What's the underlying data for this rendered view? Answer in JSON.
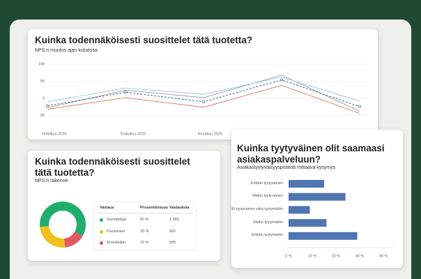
{
  "chart_data": [
    {
      "type": "line",
      "title": "Kuinka todennäköisesti suosittelet tätä tuotetta?",
      "subtitle": "NPS:n muutos ajan kuluessa",
      "categories": [
        "Huhtikuu 2025",
        "Toukokuu 2025",
        "Kesäkuu 2025",
        null,
        null
      ],
      "ylim": [
        -100,
        100
      ],
      "yticks": [
        100,
        50,
        0,
        -50
      ],
      "grid": true,
      "series": [
        {
          "color": "#9a9a9a",
          "values": [
            -28,
            24,
            2,
            68,
            -38
          ]
        },
        {
          "color": "#9cc3dd",
          "values": [
            -10,
            30,
            12,
            62,
            -8
          ]
        },
        {
          "color": "#e0705f",
          "values": [
            -32,
            2,
            -26,
            38,
            -44
          ]
        },
        {
          "color": "#4f76b0",
          "dashed": true,
          "markers": true,
          "values": [
            -22,
            18,
            -10,
            54,
            -24
          ]
        }
      ]
    },
    {
      "type": "pie",
      "title": "Kuinka todennäköisesti suosittelet tätä tuotetta?",
      "subtitle": "NPS:n rakenne",
      "categories": [
        "Suosittelijat",
        "Passiiviset",
        "Arvostelijat"
      ],
      "values": [
        60,
        25,
        15
      ],
      "value_labels": [
        "60 %",
        "25 %",
        "15 %"
      ],
      "colors": [
        "#1fae6b",
        "#f2c01e",
        "#e05a5f"
      ],
      "table_headers": [
        "Vastaus",
        "Prosenttiosuus",
        "Vastauksia"
      ],
      "counts": [
        "2 380",
        "992",
        "595"
      ]
    },
    {
      "type": "hbar",
      "title": "Kuinka tyytyväinen olit saamaasi asiakaspalveluun?",
      "subtitle": "Asiakastyytyväisyyspisteitä mittaava kysymys",
      "categories": [
        "Erittäin tyytyväinen",
        "Melko tyytyväinen",
        "Ei tyytyväinen eikä tyytymätön",
        "Melko tyytymätön",
        "Erittäin tyytymätön"
      ],
      "values": [
        15,
        24,
        9,
        16,
        29
      ],
      "color": "#4f76b0",
      "xlim": [
        0,
        40
      ],
      "xticks": [
        {
          "value": 0,
          "label": "0 %"
        },
        {
          "value": 10,
          "label": "10 %"
        },
        {
          "value": 20,
          "label": "20 %"
        },
        {
          "value": 30,
          "label": "30 %"
        },
        {
          "value": 40,
          "label": "40 %"
        }
      ]
    }
  ]
}
